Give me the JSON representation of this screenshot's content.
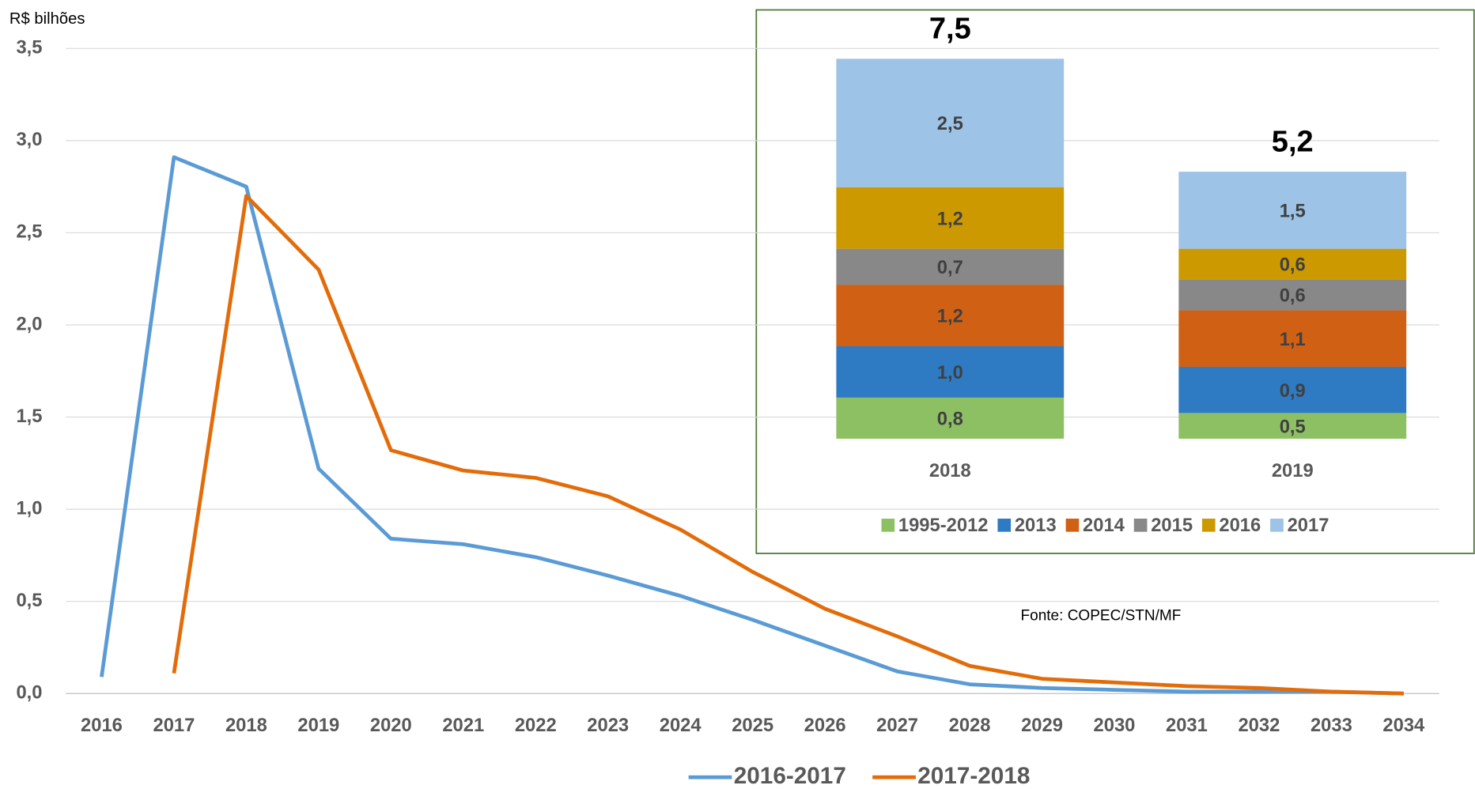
{
  "chart_data": [
    {
      "type": "line",
      "y_axis_label": "R$ bilhões",
      "categories": [
        "2016",
        "2017",
        "2018",
        "2019",
        "2020",
        "2021",
        "2022",
        "2023",
        "2024",
        "2025",
        "2026",
        "2027",
        "2028",
        "2029",
        "2030",
        "2031",
        "2032",
        "2033",
        "2034"
      ],
      "series": [
        {
          "name": "2016-2017",
          "color": "#5b9bd5",
          "values": [
            0.09,
            2.91,
            2.75,
            1.22,
            0.84,
            0.81,
            0.74,
            0.64,
            0.53,
            0.4,
            0.26,
            0.12,
            0.05,
            0.03,
            0.02,
            0.01,
            0.01,
            0.01,
            0.0
          ]
        },
        {
          "name": "2017-2018",
          "color": "#e36c0a",
          "values": [
            null,
            0.11,
            2.7,
            2.3,
            1.32,
            1.21,
            1.17,
            1.07,
            0.89,
            0.66,
            0.46,
            0.31,
            0.15,
            0.08,
            0.06,
            0.04,
            0.03,
            0.01,
            0.0
          ]
        }
      ],
      "ylim": [
        0,
        3.5
      ],
      "yticks": [
        {
          "value": 0,
          "label": "0,0"
        },
        {
          "value": 0.5,
          "label": "0,5"
        },
        {
          "value": 1,
          "label": "1,0"
        },
        {
          "value": 1.5,
          "label": "1,5"
        },
        {
          "value": 2,
          "label": "2,0"
        },
        {
          "value": 2.5,
          "label": "2,5"
        },
        {
          "value": 3,
          "label": "3,0"
        },
        {
          "value": 3.5,
          "label": "3,5"
        }
      ],
      "grid": true,
      "legend": "bottom",
      "annotation": "Fonte: COPEC/STN/MF"
    },
    {
      "type": "stacked_bar",
      "categories": [
        "2018",
        "2019"
      ],
      "series": [
        {
          "name": "1995-2012",
          "color": "#8dc063",
          "values": [
            0.8,
            0.5
          ],
          "value_labels": [
            "0,8",
            "0,5"
          ]
        },
        {
          "name": "2013",
          "color": "#2e7bc4",
          "values": [
            1.0,
            0.9
          ],
          "value_labels": [
            "1,0",
            "0,9"
          ]
        },
        {
          "name": "2014",
          "color": "#d06114",
          "values": [
            1.2,
            1.1
          ],
          "value_labels": [
            "1,2",
            "1,1"
          ]
        },
        {
          "name": "2015",
          "color": "#888888",
          "values": [
            0.7,
            0.6
          ],
          "value_labels": [
            "0,7",
            "0,6"
          ]
        },
        {
          "name": "2016",
          "color": "#cc9a00",
          "values": [
            1.2,
            0.6
          ],
          "value_labels": [
            "1,2",
            "0,6"
          ]
        },
        {
          "name": "2017",
          "color": "#9dc3e6",
          "values": [
            2.5,
            1.5
          ],
          "value_labels": [
            "2,5",
            "1,5"
          ]
        }
      ],
      "totals": [
        7.5,
        5.2
      ],
      "total_labels": [
        "7,5",
        "5,2"
      ],
      "legend": "bottom"
    }
  ]
}
